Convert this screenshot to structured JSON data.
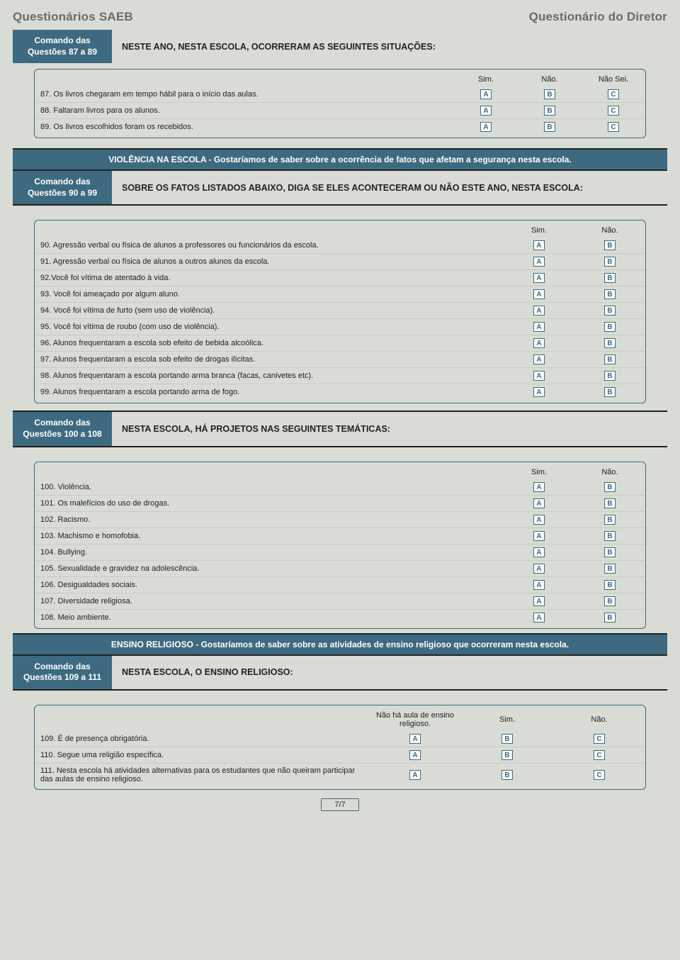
{
  "header": {
    "left": "Questionários SAEB",
    "right": "Questionário do Diretor"
  },
  "section1": {
    "comando_line1": "Comando das",
    "comando_line2": "Questões 87 a 89",
    "prompt": "NESTE ANO, NESTA ESCOLA, OCORRERAM AS SEGUINTES SITUAÇÕES:",
    "cols": [
      "Sim.",
      "Não.",
      "Não Sei."
    ],
    "opts": [
      "A",
      "B",
      "C"
    ],
    "rows": [
      "87. Os livros chegaram em tempo hábil para o início das aulas.",
      "88. Faltaram livros para os alunos.",
      "89. Os livros escolhidos foram os recebidos."
    ]
  },
  "banner1": "VIOLÊNCIA NA ESCOLA - Gostaríamos de saber sobre a ocorrência de fatos que afetam a segurança nesta escola.",
  "section2": {
    "comando_line1": "Comando das",
    "comando_line2": "Questões 90 a 99",
    "prompt": "SOBRE OS FATOS LISTADOS ABAIXO, DIGA SE ELES ACONTECERAM OU NÃO ESTE ANO, NESTA ESCOLA:",
    "cols": [
      "Sim.",
      "Não."
    ],
    "opts": [
      "A",
      "B"
    ],
    "rows": [
      "90. Agressão verbal ou física de alunos a professores ou funcionários da escola.",
      "91. Agressão verbal ou física de alunos a outros alunos da escola.",
      "92.Você foi vítima de atentado à vida.",
      "93. Você foi ameaçado por algum aluno.",
      "94. Você foi vítima de furto (sem uso de violência).",
      "95. Você foi vítima de roubo (com uso de violência).",
      "96. Alunos frequentaram a escola sob efeito de bebida alcoólica.",
      "97. Alunos frequentaram a escola  sob efeito de drogas ilícitas.",
      "98. Alunos frequentaram a escola portando arma branca (facas, canivetes etc).",
      "99. Alunos frequentaram a escola portando arma de fogo."
    ]
  },
  "section3": {
    "comando_line1": "Comando das",
    "comando_line2": "Questões 100 a 108",
    "prompt": "NESTA ESCOLA, HÁ PROJETOS NAS SEGUINTES TEMÁTICAS:",
    "cols": [
      "Sim.",
      "Não."
    ],
    "opts": [
      "A",
      "B"
    ],
    "rows": [
      "100. Violência.",
      "101. Os malefícios do uso de drogas.",
      "102. Racismo.",
      "103. Machismo e homofobia.",
      "104. Bullying.",
      "105. Sexualidade e gravidez na adolescência.",
      "106. Desigualdades sociais.",
      "107. Diversidade religiosa.",
      "108. Meio ambiente."
    ]
  },
  "banner2": "ENSINO RELIGIOSO - Gostaríamos de saber sobre as atividades de ensino religioso que ocorreram nesta escola.",
  "section4": {
    "comando_line1": "Comando das",
    "comando_line2": "Questões 109 a 111",
    "prompt": "NESTA ESCOLA, O ENSINO RELIGIOSO:",
    "cols": [
      "Não há aula de ensino religioso.",
      "Sim.",
      "Não."
    ],
    "opts": [
      "A",
      "B",
      "C"
    ],
    "rows": [
      "109. É de presença obrigatória.",
      "110. Segue uma religião específica.",
      "111. Nesta escola há atividades alternativas para os estudantes que não queiram participar das aulas de ensino religioso."
    ]
  },
  "footer": "7/7"
}
